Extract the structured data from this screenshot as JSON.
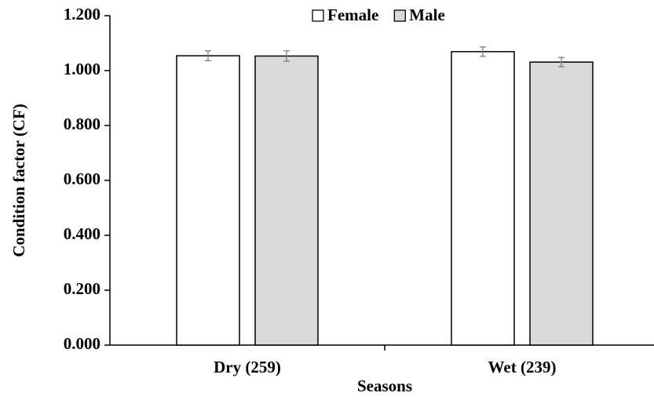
{
  "chart_data": {
    "type": "bar",
    "xlabel": "Seasons",
    "ylabel": "Condition factor (CF)",
    "categories": [
      "Dry (259)",
      "Wet (239)"
    ],
    "series": [
      {
        "name": "Female",
        "color": "#ffffff",
        "values": [
          1.054,
          1.069
        ],
        "errors": [
          0.018,
          0.017
        ]
      },
      {
        "name": "Male",
        "color": "#d9d9d9",
        "values": [
          1.053,
          1.031
        ],
        "errors": [
          0.019,
          0.017
        ]
      }
    ],
    "ylim": [
      0,
      1.2
    ],
    "yticks": [
      {
        "value": 0,
        "label": "0.000"
      },
      {
        "value": 0.2,
        "label": "0.200"
      },
      {
        "value": 0.4,
        "label": "0.400"
      },
      {
        "value": 0.6,
        "label": "0.600"
      },
      {
        "value": 0.8,
        "label": "0.800"
      },
      {
        "value": 1.0,
        "label": "1.000"
      },
      {
        "value": 1.2,
        "label": "1.200"
      }
    ],
    "legend": "top"
  }
}
